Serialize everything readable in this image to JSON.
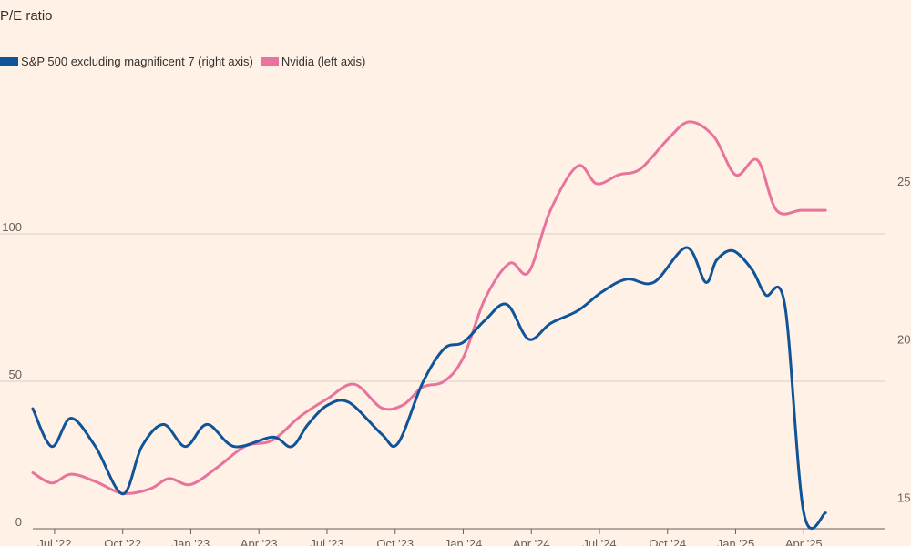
{
  "chart_data": {
    "type": "line",
    "title": "P/E ratio",
    "colors": {
      "background": "#fff1e5",
      "sp500": "#0f5499",
      "nvidia": "#e8739c",
      "grid": "#d9cec5",
      "axis": "#66605c"
    },
    "legend": {
      "placement": "top-left"
    },
    "left_axis": {
      "ylim": [
        0,
        150
      ],
      "ticks": [
        0,
        50,
        100
      ]
    },
    "right_axis": {
      "ylim": [
        14,
        28
      ],
      "ticks": [
        15,
        20,
        25
      ]
    },
    "x_axis": {
      "xlim": [
        2022.42,
        2025.55
      ],
      "ticks": [
        {
          "label": "Jul '22",
          "x": 2022.5
        },
        {
          "label": "Oct '22",
          "x": 2022.75
        },
        {
          "label": "Jan '23",
          "x": 2023.0
        },
        {
          "label": "Apr '23",
          "x": 2023.25
        },
        {
          "label": "Jul '23",
          "x": 2023.5
        },
        {
          "label": "Oct '23",
          "x": 2023.75
        },
        {
          "label": "Jan '24",
          "x": 2024.0
        },
        {
          "label": "Apr '24",
          "x": 2024.25
        },
        {
          "label": "Jul '24",
          "x": 2024.5
        },
        {
          "label": "Oct '24",
          "x": 2024.75
        },
        {
          "label": "Jan '25",
          "x": 2025.0
        },
        {
          "label": "Apr '25",
          "x": 2025.25
        }
      ]
    },
    "series": [
      {
        "name": "S&P 500 excluding magnificent 7 (right axis)",
        "axis": "right",
        "color": "#0f5499",
        "x": [
          2022.42,
          2022.49,
          2022.56,
          2022.65,
          2022.75,
          2022.82,
          2022.9,
          2022.98,
          2023.06,
          2023.16,
          2023.3,
          2023.37,
          2023.43,
          2023.5,
          2023.58,
          2023.7,
          2023.76,
          2023.85,
          2023.93,
          2024.0,
          2024.08,
          2024.16,
          2024.24,
          2024.32,
          2024.42,
          2024.51,
          2024.6,
          2024.7,
          2024.82,
          2024.89,
          2024.93,
          2024.99,
          2025.06,
          2025.11,
          2025.18,
          2025.25,
          2025.33
        ],
        "values": [
          17.8,
          16.6,
          17.5,
          16.6,
          15.1,
          16.6,
          17.3,
          16.6,
          17.3,
          16.6,
          16.9,
          16.6,
          17.3,
          17.9,
          18.0,
          17.0,
          16.7,
          18.6,
          19.7,
          19.9,
          20.6,
          21.1,
          20.0,
          20.5,
          20.9,
          21.5,
          21.9,
          21.8,
          22.9,
          21.8,
          22.5,
          22.8,
          22.2,
          21.4,
          21.1,
          14.5,
          14.5
        ]
      },
      {
        "name": "Nvidia (left axis)",
        "axis": "left",
        "color": "#e8739c",
        "x": [
          2022.42,
          2022.49,
          2022.56,
          2022.65,
          2022.75,
          2022.85,
          2022.92,
          2023.0,
          2023.1,
          2023.2,
          2023.3,
          2023.4,
          2023.5,
          2023.6,
          2023.7,
          2023.78,
          2023.85,
          2023.93,
          2024.0,
          2024.08,
          2024.17,
          2024.24,
          2024.32,
          2024.42,
          2024.49,
          2024.57,
          2024.65,
          2024.75,
          2024.83,
          2024.92,
          2025.0,
          2025.08,
          2025.15,
          2025.24,
          2025.33
        ],
        "values": [
          19,
          15.5,
          18.5,
          16,
          12,
          13.5,
          17,
          15,
          21,
          28,
          30,
          38,
          44,
          49,
          41,
          42,
          48,
          50,
          58,
          78,
          90,
          87,
          108,
          123,
          117,
          120,
          122,
          132,
          138,
          133,
          120,
          125,
          108,
          108,
          108
        ]
      }
    ]
  },
  "title": "P/E ratio",
  "legend_items": [
    {
      "label": "S&P 500 excluding magnificent 7 (right axis)",
      "color": "#0f5499"
    },
    {
      "label": "Nvidia (left axis)",
      "color": "#e8739c"
    }
  ]
}
